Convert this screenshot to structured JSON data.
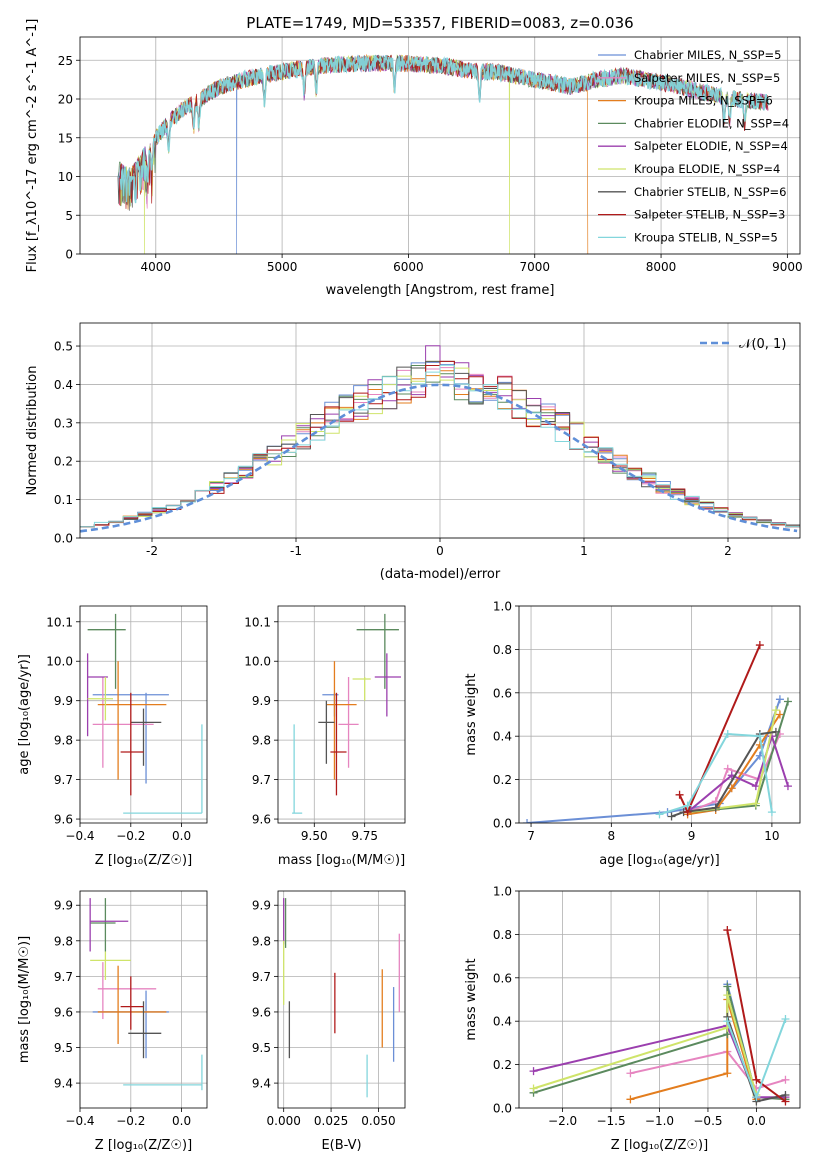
{
  "figure": {
    "title": "PLATE=1749, MJD=53357, FIBERID=0083, z=0.036"
  },
  "model_colors": {
    "chabrier_miles": "#6b8fd6",
    "salpeter_miles": "#e685c0",
    "kroupa_miles": "#e37d1e",
    "chabrier_elodie": "#5b8a5e",
    "salpeter_elodie": "#9b3fae",
    "kroupa_elodie": "#cfe46a",
    "chabrier_stelib": "#555555",
    "salpeter_stelib": "#b01a1a",
    "kroupa_stelib": "#83d6dc"
  },
  "chart_data": [
    {
      "id": "spectrum",
      "type": "line",
      "title": "PLATE=1749, MJD=53357, FIBERID=0083, z=0.036",
      "xlabel": "wavelength [Angstrom, rest frame]",
      "ylabel": "Flux [f_λ10^-17 erg cm^-2 s^-1 A^-1]",
      "xlim": [
        3400,
        9100
      ],
      "ylim": [
        0,
        28
      ],
      "xticks": [
        4000,
        5000,
        6000,
        7000,
        8000,
        9000
      ],
      "yticks": [
        0,
        5,
        10,
        15,
        20,
        25
      ],
      "legend_position": "top-right",
      "legend": [
        "Chabrier MILES, N_SSP=5",
        "Salpeter MILES, N_SSP=5",
        "Kroupa MILES, N_SSP=6",
        "Chabrier ELODIE, N_SSP=4",
        "Salpeter ELODIE, N_SSP=4",
        "Kroupa ELODIE, N_SSP=4",
        "Chabrier STELIB, N_SSP=6",
        "Salpeter STELIB, N_SSP=3",
        "Kroupa STELIB, N_SSP=5"
      ],
      "continuum": {
        "x": [
          3700,
          3800,
          3900,
          4000,
          4100,
          4200,
          4300,
          4400,
          4500,
          4700,
          4900,
          5100,
          5300,
          5500,
          5700,
          5900,
          6100,
          6300,
          6500,
          6700,
          6900,
          7100,
          7300,
          7500,
          7700,
          7900,
          8100,
          8300,
          8500,
          8700,
          8850
        ],
        "y": [
          11,
          10,
          12.5,
          15,
          17,
          18.5,
          19.5,
          20.5,
          21.5,
          22.5,
          23.2,
          23.8,
          24.3,
          24.5,
          24.6,
          24.6,
          24.5,
          24.2,
          23.6,
          23.5,
          22.8,
          22.2,
          21.6,
          22.5,
          23,
          22.4,
          21.8,
          21,
          20.2,
          19.8,
          19.5
        ]
      },
      "dropouts": [
        {
          "series": "Kroupa ELODIE",
          "wavelength": 3910
        },
        {
          "series": "Chabrier MILES",
          "wavelength": 4640
        },
        {
          "series": "Kroupa ELODIE",
          "wavelength": 6800
        },
        {
          "series": "Kroupa MILES",
          "wavelength": 7420
        }
      ]
    },
    {
      "id": "residuals",
      "type": "histogram",
      "xlabel": "(data-model)/error",
      "ylabel": "Normed distribution",
      "xlim": [
        -2.5,
        2.5
      ],
      "ylim": [
        0,
        0.56
      ],
      "xticks": [
        -2,
        -1,
        0,
        1,
        2
      ],
      "yticks": [
        0.0,
        0.1,
        0.2,
        0.3,
        0.4,
        0.5
      ],
      "bin_width": 0.1,
      "reference_curve": "normal(0,1)",
      "legend": [
        "𝒩(0, 1)"
      ],
      "legend_position": "top-right",
      "series_max": {
        "Chabrier MILES": 0.47,
        "Salpeter MILES": 0.54,
        "Kroupa MILES": 0.46,
        "Chabrier ELODIE": 0.47,
        "Salpeter ELODIE": 0.54,
        "Kroupa ELODIE": 0.46,
        "Chabrier STELIB": 0.46,
        "Salpeter STELIB": 0.46,
        "Kroupa STELIB": 0.45
      }
    },
    {
      "id": "age_vs_Z",
      "type": "errorbar",
      "xlabel": "Z [log10(Z/Z☉)]",
      "ylabel": "age [log10(age/yr)]",
      "xlim": [
        -0.4,
        0.1
      ],
      "ylim": [
        9.59,
        10.14
      ],
      "xticks": [
        -0.4,
        -0.2,
        0.0
      ],
      "xtick_labels": [
        "−0.4",
        "−0.2",
        "0.0"
      ],
      "yticks": [
        9.6,
        9.7,
        9.8,
        9.9,
        10.0,
        10.1
      ],
      "points": [
        {
          "series": "Chabrier MILES",
          "x": -0.14,
          "xlo": -0.35,
          "xhi": -0.05,
          "y": 9.915,
          "ylo": 9.69,
          "yhi": 9.92
        },
        {
          "series": "Salpeter MILES",
          "x": -0.31,
          "xlo": -0.35,
          "xhi": -0.11,
          "y": 9.84,
          "ylo": 9.73,
          "yhi": 9.96
        },
        {
          "series": "Kroupa MILES",
          "x": -0.25,
          "xlo": -0.33,
          "xhi": -0.06,
          "y": 9.89,
          "ylo": 9.7,
          "yhi": 10.0
        },
        {
          "series": "Chabrier ELODIE",
          "x": -0.26,
          "xlo": -0.37,
          "xhi": -0.22,
          "y": 10.08,
          "ylo": 9.93,
          "yhi": 10.12
        },
        {
          "series": "Salpeter ELODIE",
          "x": -0.37,
          "xlo": -0.37,
          "xhi": -0.29,
          "y": 9.96,
          "ylo": 9.81,
          "yhi": 10.02
        },
        {
          "series": "Kroupa ELODIE",
          "x": -0.3,
          "xlo": -0.37,
          "xhi": -0.27,
          "y": 9.905,
          "ylo": 9.85,
          "yhi": 9.96
        },
        {
          "series": "Chabrier STELIB",
          "x": -0.15,
          "xlo": -0.2,
          "xhi": -0.08,
          "y": 9.845,
          "ylo": 9.735,
          "yhi": 9.88
        },
        {
          "series": "Salpeter STELIB",
          "x": -0.2,
          "xlo": -0.24,
          "xhi": -0.15,
          "y": 9.77,
          "ylo": 9.66,
          "yhi": 9.92
        },
        {
          "series": "Kroupa STELIB",
          "x": 0.08,
          "xlo": -0.23,
          "xhi": 0.08,
          "y": 9.615,
          "ylo": 9.615,
          "yhi": 9.84
        }
      ]
    },
    {
      "id": "age_vs_mass",
      "type": "errorbar",
      "xlabel": "mass [log10(M/M☉)]",
      "ylabel": "",
      "xlim": [
        9.32,
        9.95
      ],
      "ylim": [
        9.59,
        10.14
      ],
      "xticks": [
        9.5,
        9.75
      ],
      "xtick_labels": [
        "9.50",
        "9.75"
      ],
      "yticks": [
        9.6,
        9.7,
        9.8,
        9.9,
        10.0,
        10.1
      ],
      "points": [
        {
          "series": "Chabrier MILES",
          "x": 9.6,
          "xlo": 9.54,
          "xhi": 9.62,
          "y": 9.915,
          "ylo": 9.86,
          "yhi": 9.92
        },
        {
          "series": "Salpeter MILES",
          "x": 9.67,
          "xlo": 9.62,
          "xhi": 9.72,
          "y": 9.84,
          "ylo": 9.73,
          "yhi": 9.96
        },
        {
          "series": "Kroupa MILES",
          "x": 9.6,
          "xlo": 9.56,
          "xhi": 9.71,
          "y": 9.89,
          "ylo": 9.7,
          "yhi": 10.0
        },
        {
          "series": "Chabrier ELODIE",
          "x": 9.85,
          "xlo": 9.71,
          "xhi": 9.92,
          "y": 10.08,
          "ylo": 9.93,
          "yhi": 10.12
        },
        {
          "series": "Salpeter ELODIE",
          "x": 9.86,
          "xlo": 9.8,
          "xhi": 9.93,
          "y": 9.96,
          "ylo": 9.86,
          "yhi": 10.02
        },
        {
          "series": "Kroupa ELODIE",
          "x": 9.75,
          "xlo": 9.69,
          "xhi": 9.78,
          "y": 9.955,
          "ylo": 9.9,
          "yhi": 9.96
        },
        {
          "series": "Chabrier STELIB",
          "x": 9.56,
          "xlo": 9.52,
          "xhi": 9.6,
          "y": 9.845,
          "ylo": 9.74,
          "yhi": 9.9
        },
        {
          "series": "Salpeter STELIB",
          "x": 9.61,
          "xlo": 9.58,
          "xhi": 9.66,
          "y": 9.77,
          "ylo": 9.66,
          "yhi": 9.92
        },
        {
          "series": "Kroupa STELIB",
          "x": 9.4,
          "xlo": 9.39,
          "xhi": 9.44,
          "y": 9.615,
          "ylo": 9.615,
          "yhi": 9.84
        }
      ]
    },
    {
      "id": "weight_vs_age",
      "type": "line",
      "xlabel": "age [log10(age/yr)]",
      "ylabel": "mass weight",
      "xlim": [
        6.85,
        10.35
      ],
      "ylim": [
        0,
        1
      ],
      "xticks": [
        7,
        8,
        9,
        10
      ],
      "yticks": [
        0.0,
        0.2,
        0.4,
        0.6,
        0.8,
        1.0
      ],
      "series": [
        {
          "name": "Chabrier MILES",
          "x": [
            6.95,
            8.7,
            9.35,
            9.85,
            10.1
          ],
          "y": [
            0.0,
            0.05,
            0.09,
            0.31,
            0.57
          ]
        },
        {
          "name": "Salpeter MILES",
          "x": [
            8.95,
            9.3,
            9.45,
            9.85,
            10.1
          ],
          "y": [
            0.05,
            0.1,
            0.25,
            0.2,
            0.41
          ]
        },
        {
          "name": "Kroupa MILES",
          "x": [
            8.95,
            9.3,
            9.5,
            9.85,
            10.1
          ],
          "y": [
            0.04,
            0.06,
            0.16,
            0.36,
            0.5
          ]
        },
        {
          "name": "Chabrier ELODIE",
          "x": [
            8.95,
            9.8,
            10.2
          ],
          "y": [
            0.05,
            0.08,
            0.56
          ]
        },
        {
          "name": "Salpeter ELODIE",
          "x": [
            8.95,
            9.5,
            9.8,
            10.0,
            10.2
          ],
          "y": [
            0.05,
            0.22,
            0.17,
            0.4,
            0.17
          ]
        },
        {
          "name": "Kroupa ELODIE",
          "x": [
            8.95,
            9.8,
            10.05
          ],
          "y": [
            0.05,
            0.09,
            0.52
          ]
        },
        {
          "name": "Chabrier STELIB",
          "x": [
            8.75,
            8.9,
            9.3,
            9.85,
            10.05
          ],
          "y": [
            0.03,
            0.05,
            0.07,
            0.41,
            0.42
          ]
        },
        {
          "name": "Salpeter STELIB",
          "x": [
            8.85,
            8.95,
            9.85
          ],
          "y": [
            0.13,
            0.05,
            0.82
          ]
        },
        {
          "name": "Kroupa STELIB",
          "x": [
            8.6,
            8.95,
            9.45,
            9.85,
            10.0
          ],
          "y": [
            0.04,
            0.08,
            0.41,
            0.4,
            0.05
          ]
        }
      ]
    },
    {
      "id": "mass_vs_Z",
      "type": "errorbar",
      "xlabel": "Z [log10(Z/Z☉)]",
      "ylabel": "mass [log10(M/M☉)]",
      "xlim": [
        -0.4,
        0.1
      ],
      "ylim": [
        9.33,
        9.94
      ],
      "xticks": [
        -0.4,
        -0.2,
        0.0
      ],
      "xtick_labels": [
        "−0.4",
        "−0.2",
        "0.0"
      ],
      "yticks": [
        9.4,
        9.5,
        9.6,
        9.7,
        9.8,
        9.9
      ],
      "points": [
        {
          "series": "Chabrier MILES",
          "x": -0.14,
          "xlo": -0.35,
          "xhi": -0.05,
          "y": 9.6,
          "ylo": 9.47,
          "yhi": 9.66
        },
        {
          "series": "Salpeter MILES",
          "x": -0.31,
          "xlo": -0.33,
          "xhi": -0.1,
          "y": 9.665,
          "ylo": 9.58,
          "yhi": 9.74
        },
        {
          "series": "Kroupa MILES",
          "x": -0.25,
          "xlo": -0.33,
          "xhi": -0.06,
          "y": 9.6,
          "ylo": 9.51,
          "yhi": 9.73
        },
        {
          "series": "Chabrier ELODIE",
          "x": -0.3,
          "xlo": -0.36,
          "xhi": -0.26,
          "y": 9.85,
          "ylo": 9.77,
          "yhi": 9.92
        },
        {
          "series": "Salpeter ELODIE",
          "x": -0.36,
          "xlo": -0.36,
          "xhi": -0.21,
          "y": 9.855,
          "ylo": 9.77,
          "yhi": 9.92
        },
        {
          "series": "Kroupa ELODIE",
          "x": -0.3,
          "xlo": -0.36,
          "xhi": -0.2,
          "y": 9.745,
          "ylo": 9.69,
          "yhi": 9.77
        },
        {
          "series": "Chabrier STELIB",
          "x": -0.15,
          "xlo": -0.21,
          "xhi": -0.08,
          "y": 9.54,
          "ylo": 9.47,
          "yhi": 9.63
        },
        {
          "series": "Salpeter STELIB",
          "x": -0.2,
          "xlo": -0.24,
          "xhi": -0.15,
          "y": 9.615,
          "ylo": 9.55,
          "yhi": 9.7
        },
        {
          "series": "Kroupa STELIB",
          "x": 0.08,
          "xlo": -0.23,
          "xhi": 0.08,
          "y": 9.395,
          "ylo": 9.38,
          "yhi": 9.48
        }
      ]
    },
    {
      "id": "mass_vs_ebv",
      "type": "errorbar",
      "xlabel": "E(B-V)",
      "ylabel": "",
      "xlim": [
        -0.003,
        0.064
      ],
      "ylim": [
        9.33,
        9.94
      ],
      "xticks": [
        0.0,
        0.025,
        0.05
      ],
      "xtick_labels": [
        "0.000",
        "0.025",
        "0.050"
      ],
      "yticks": [
        9.4,
        9.5,
        9.6,
        9.7,
        9.8,
        9.9
      ],
      "points": [
        {
          "series": "Chabrier MILES",
          "x": 0.058,
          "y": 9.565,
          "ylo": 9.46,
          "yhi": 9.67
        },
        {
          "series": "Salpeter MILES",
          "x": 0.061,
          "y": 9.715,
          "ylo": 9.6,
          "yhi": 9.82
        },
        {
          "series": "Kroupa MILES",
          "x": 0.052,
          "y": 9.6,
          "ylo": 9.5,
          "yhi": 9.72
        },
        {
          "series": "Chabrier ELODIE",
          "x": 0.001,
          "y": 9.85,
          "ylo": 9.78,
          "yhi": 9.92
        },
        {
          "series": "Salpeter ELODIE",
          "x": 0.0,
          "y": 9.855,
          "ylo": 9.79,
          "yhi": 9.92
        },
        {
          "series": "Kroupa ELODIE",
          "x": 0.0,
          "y": 9.7,
          "ylo": 9.62,
          "yhi": 9.8
        },
        {
          "series": "Chabrier STELIB",
          "x": 0.003,
          "y": 9.55,
          "ylo": 9.47,
          "yhi": 9.63
        },
        {
          "series": "Salpeter STELIB",
          "x": 0.027,
          "y": 9.62,
          "ylo": 9.54,
          "yhi": 9.71
        },
        {
          "series": "Kroupa STELIB",
          "x": 0.044,
          "y": 9.42,
          "ylo": 9.36,
          "yhi": 9.48
        }
      ]
    },
    {
      "id": "weight_vs_Z",
      "type": "line",
      "xlabel": "Z [log10(Z/Z☉)]",
      "ylabel": "mass weight",
      "xlim": [
        -2.45,
        0.45
      ],
      "ylim": [
        0,
        1
      ],
      "xticks": [
        -2.0,
        -1.5,
        -1.0,
        -0.5,
        0.0
      ],
      "xtick_labels": [
        "−2.0",
        "−1.5",
        "−1.0",
        "−0.5",
        "0.0"
      ],
      "yticks": [
        0.0,
        0.2,
        0.4,
        0.6,
        0.8,
        1.0
      ],
      "series": [
        {
          "name": "Chabrier MILES",
          "x": [
            -0.3,
            0.0
          ],
          "y": [
            0.57,
            0.05
          ]
        },
        {
          "name": "Salpeter MILES",
          "x": [
            -1.3,
            -0.3,
            0.0,
            0.3
          ],
          "y": [
            0.16,
            0.26,
            0.09,
            0.13
          ]
        },
        {
          "name": "Kroupa MILES",
          "x": [
            -1.3,
            -0.3,
            -0.3,
            0.0
          ],
          "y": [
            0.04,
            0.16,
            0.5,
            0.04
          ]
        },
        {
          "name": "Chabrier ELODIE",
          "x": [
            -2.3,
            -0.3,
            -0.3,
            0.0,
            0.3
          ],
          "y": [
            0.07,
            0.34,
            0.56,
            0.05,
            0.04
          ]
        },
        {
          "name": "Salpeter ELODIE",
          "x": [
            -2.3,
            -0.3,
            0.0,
            0.3
          ],
          "y": [
            0.17,
            0.38,
            0.05,
            0.05
          ]
        },
        {
          "name": "Kroupa ELODIE",
          "x": [
            -2.3,
            -0.3,
            -0.3,
            0.0
          ],
          "y": [
            0.09,
            0.37,
            0.52,
            0.06
          ]
        },
        {
          "name": "Chabrier STELIB",
          "x": [
            -0.3,
            0.0,
            0.3
          ],
          "y": [
            0.42,
            0.03,
            0.06
          ]
        },
        {
          "name": "Salpeter STELIB",
          "x": [
            -0.3,
            0.0,
            0.3
          ],
          "y": [
            0.82,
            0.13,
            0.03
          ]
        },
        {
          "name": "Kroupa STELIB",
          "x": [
            -0.3,
            0.0,
            0.3
          ],
          "y": [
            0.4,
            0.05,
            0.41
          ]
        }
      ]
    }
  ]
}
